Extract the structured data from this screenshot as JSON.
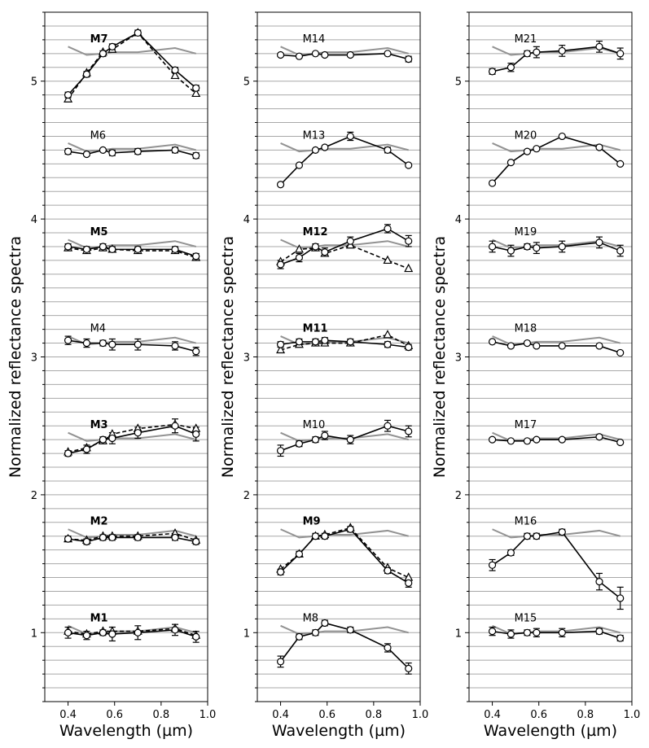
{
  "chart_data": {
    "type": "line",
    "title": "",
    "xlabel": "Wavelength (µm)",
    "ylabel": "Normalized reflectance spectra",
    "xlim": [
      0.3,
      1.0
    ],
    "ylim": [
      0.5,
      5.5
    ],
    "x_ticks": [
      "0.4",
      "0.6",
      "0.8",
      "1.0"
    ],
    "y_ticks": [
      "1",
      "2",
      "3",
      "4",
      "5"
    ],
    "grid": "horizontal",
    "reference_color": "#929292",
    "x": [
      0.4,
      0.48,
      0.55,
      0.59,
      0.7,
      0.86,
      0.95
    ],
    "panels": [
      {
        "samples": [
          {
            "label": "M7",
            "bold": true,
            "offset": 5.2,
            "circle": [
              4.9,
              5.05,
              5.2,
              5.25,
              5.35,
              5.08,
              4.95
            ],
            "triangle": [
              4.87,
              5.06,
              5.21,
              5.23,
              5.35,
              5.04,
              4.91
            ],
            "errors": [
              0.02,
              0.02,
              0.02,
              0.02,
              0.02,
              0.02,
              0.02
            ]
          },
          {
            "label": "M6",
            "bold": false,
            "offset": 4.5,
            "circle": [
              4.49,
              4.47,
              4.5,
              4.48,
              4.49,
              4.5,
              4.46
            ],
            "triangle": null,
            "errors": [
              0.02,
              0.01,
              0.01,
              0.02,
              0.02,
              0.02,
              0.02
            ]
          },
          {
            "label": "M5",
            "bold": true,
            "offset": 3.8,
            "circle": [
              3.8,
              3.78,
              3.8,
              3.78,
              3.78,
              3.78,
              3.73
            ],
            "triangle": [
              3.79,
              3.77,
              3.79,
              3.78,
              3.77,
              3.77,
              3.72
            ],
            "errors": [
              0.02,
              0.02,
              0.02,
              0.02,
              0.02,
              0.02,
              0.02
            ]
          },
          {
            "label": "M4",
            "bold": false,
            "offset": 3.1,
            "circle": [
              3.12,
              3.1,
              3.1,
              3.09,
              3.09,
              3.08,
              3.04
            ],
            "triangle": null,
            "errors": [
              0.03,
              0.03,
              0.02,
              0.04,
              0.04,
              0.03,
              0.03
            ]
          },
          {
            "label": "M3",
            "bold": true,
            "offset": 2.4,
            "circle": [
              2.3,
              2.33,
              2.4,
              2.41,
              2.45,
              2.5,
              2.44
            ],
            "triangle": [
              2.31,
              2.34,
              2.39,
              2.44,
              2.48,
              2.51,
              2.48
            ],
            "errors": [
              0.02,
              0.03,
              0.02,
              0.04,
              0.04,
              0.05,
              0.05
            ]
          },
          {
            "label": "M2",
            "bold": true,
            "offset": 1.7,
            "circle": [
              1.68,
              1.66,
              1.69,
              1.69,
              1.69,
              1.69,
              1.66
            ],
            "triangle": [
              1.68,
              1.67,
              1.7,
              1.7,
              1.7,
              1.72,
              1.67
            ],
            "errors": [
              0.02,
              0.02,
              0.02,
              0.02,
              0.02,
              0.02,
              0.02
            ]
          },
          {
            "label": "M1",
            "bold": true,
            "offset": 1.0,
            "circle": [
              1.0,
              0.98,
              1.0,
              0.99,
              1.0,
              1.02,
              0.97
            ],
            "triangle": [
              1.01,
              0.99,
              1.01,
              1.01,
              1.01,
              1.03,
              0.98
            ],
            "errors": [
              0.04,
              0.03,
              0.02,
              0.05,
              0.05,
              0.04,
              0.04
            ]
          }
        ]
      },
      {
        "samples": [
          {
            "label": "M14",
            "bold": false,
            "offset": 5.2,
            "circle": [
              5.19,
              5.18,
              5.2,
              5.19,
              5.19,
              5.2,
              5.16
            ],
            "triangle": null,
            "errors": [
              0.01,
              0.01,
              0.01,
              0.01,
              0.01,
              0.01,
              0.02
            ]
          },
          {
            "label": "M13",
            "bold": false,
            "offset": 4.5,
            "circle": [
              4.25,
              4.39,
              4.5,
              4.52,
              4.6,
              4.5,
              4.39
            ],
            "triangle": null,
            "errors": [
              0.01,
              0.01,
              0.01,
              0.01,
              0.03,
              0.02,
              0.01
            ]
          },
          {
            "label": "M12",
            "bold": true,
            "offset": 3.8,
            "circle": [
              3.67,
              3.72,
              3.8,
              3.76,
              3.84,
              3.93,
              3.84
            ],
            "triangle": [
              3.69,
              3.78,
              3.79,
              3.75,
              3.81,
              3.7,
              3.64
            ],
            "errors": [
              0.03,
              0.03,
              0.02,
              0.03,
              0.03,
              0.03,
              0.04
            ]
          },
          {
            "label": "M11",
            "bold": true,
            "offset": 3.1,
            "circle": [
              3.09,
              3.11,
              3.11,
              3.12,
              3.11,
              3.09,
              3.07
            ],
            "triangle": [
              3.05,
              3.09,
              3.1,
              3.1,
              3.1,
              3.16,
              3.08
            ],
            "errors": [
              0.02,
              0.02,
              0.02,
              0.02,
              0.02,
              0.02,
              0.02
            ]
          },
          {
            "label": "M10",
            "bold": false,
            "offset": 2.4,
            "circle": [
              2.32,
              2.37,
              2.4,
              2.43,
              2.4,
              2.5,
              2.46
            ],
            "triangle": null,
            "errors": [
              0.04,
              0.02,
              0.02,
              0.03,
              0.03,
              0.04,
              0.04
            ]
          },
          {
            "label": "M9",
            "bold": true,
            "offset": 1.7,
            "circle": [
              1.44,
              1.57,
              1.7,
              1.7,
              1.75,
              1.45,
              1.36
            ],
            "triangle": [
              1.46,
              1.57,
              1.7,
              1.71,
              1.76,
              1.47,
              1.4
            ],
            "errors": [
              0.02,
              0.02,
              0.02,
              0.02,
              0.02,
              0.02,
              0.03
            ]
          },
          {
            "label": "M8",
            "bold": false,
            "offset": 1.0,
            "circle": [
              0.79,
              0.97,
              1.0,
              1.07,
              1.02,
              0.89,
              0.74
            ],
            "triangle": null,
            "errors": [
              0.04,
              0.02,
              0.02,
              0.02,
              0.02,
              0.03,
              0.04
            ]
          }
        ]
      },
      {
        "samples": [
          {
            "label": "M21",
            "bold": false,
            "offset": 5.2,
            "circle": [
              5.07,
              5.1,
              5.2,
              5.21,
              5.22,
              5.25,
              5.2
            ],
            "triangle": null,
            "errors": [
              0.02,
              0.03,
              0.02,
              0.04,
              0.04,
              0.04,
              0.04
            ]
          },
          {
            "label": "M20",
            "bold": false,
            "offset": 4.5,
            "circle": [
              4.26,
              4.41,
              4.49,
              4.51,
              4.6,
              4.52,
              4.4
            ],
            "triangle": null,
            "errors": [
              0.01,
              0.01,
              0.01,
              0.01,
              0.01,
              0.01,
              0.01
            ]
          },
          {
            "label": "M19",
            "bold": false,
            "offset": 3.8,
            "circle": [
              3.8,
              3.77,
              3.8,
              3.79,
              3.8,
              3.83,
              3.77
            ],
            "triangle": null,
            "errors": [
              0.04,
              0.04,
              0.02,
              0.04,
              0.04,
              0.04,
              0.04
            ]
          },
          {
            "label": "M18",
            "bold": false,
            "offset": 3.1,
            "circle": [
              3.11,
              3.08,
              3.1,
              3.08,
              3.08,
              3.08,
              3.03
            ],
            "triangle": null,
            "errors": [
              0.01,
              0.01,
              0.01,
              0.01,
              0.01,
              0.01,
              0.01
            ]
          },
          {
            "label": "M17",
            "bold": false,
            "offset": 2.4,
            "circle": [
              2.4,
              2.39,
              2.39,
              2.4,
              2.4,
              2.42,
              2.38
            ],
            "triangle": null,
            "errors": [
              0.01,
              0.01,
              0.01,
              0.01,
              0.01,
              0.01,
              0.01
            ]
          },
          {
            "label": "M16",
            "bold": false,
            "offset": 1.7,
            "circle": [
              1.49,
              1.58,
              1.7,
              1.7,
              1.73,
              1.37,
              1.25
            ],
            "triangle": null,
            "errors": [
              0.04,
              0.02,
              0.02,
              0.02,
              0.02,
              0.06,
              0.08
            ]
          },
          {
            "label": "M15",
            "bold": false,
            "offset": 1.0,
            "circle": [
              1.01,
              0.99,
              1.0,
              1.0,
              1.0,
              1.01,
              0.96
            ],
            "triangle": null,
            "errors": [
              0.03,
              0.03,
              0.02,
              0.03,
              0.03,
              0.02,
              0.02
            ]
          }
        ]
      }
    ]
  }
}
